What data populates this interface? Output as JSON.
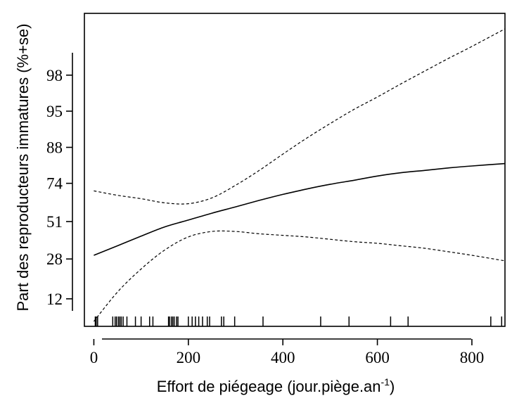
{
  "chart_data": {
    "type": "line",
    "xlabel": {
      "prefix": "Effort de piégeage (jour.piège.an",
      "superscript": "-1",
      "suffix": ")"
    },
    "ylabel": "Part des reproducteurs immatures (%+se)",
    "x_ticks": [
      "0",
      "200",
      "400",
      "600",
      "800"
    ],
    "y_ticks": [
      "12",
      "28",
      "51",
      "74",
      "88",
      "95",
      "98"
    ],
    "x_tick_values": [
      0,
      200,
      400,
      600,
      800
    ],
    "xlim": [
      -20,
      870
    ],
    "y_axis_scale": "logit",
    "ylim": [
      6.2,
      99.6
    ],
    "grid": false,
    "series": [
      {
        "role": "fit",
        "style": "solid",
        "x": [
          0,
          50,
          100,
          150,
          200,
          250,
          300,
          350,
          400,
          450,
          500,
          550,
          600,
          650,
          700,
          750,
          800,
          870
        ],
        "y": [
          30,
          35.5,
          41.5,
          47.5,
          52,
          56.5,
          60.5,
          64.5,
          68,
          71,
          73.5,
          75.5,
          77.5,
          79,
          80,
          81,
          81.8,
          82.7
        ]
      },
      {
        "role": "upper-ci",
        "style": "dashed",
        "x": [
          0,
          50,
          100,
          150,
          200,
          250,
          300,
          350,
          400,
          450,
          500,
          550,
          600,
          650,
          700,
          750,
          800,
          870
        ],
        "y": [
          70,
          67.5,
          65.5,
          63,
          62.5,
          66,
          73,
          80,
          86,
          90.3,
          93.2,
          95.2,
          96.5,
          97.5,
          98.2,
          98.7,
          99.05,
          99.4
        ]
      },
      {
        "role": "lower-ci",
        "style": "dashed",
        "x": [
          0,
          50,
          100,
          150,
          200,
          250,
          300,
          350,
          400,
          450,
          500,
          550,
          600,
          650,
          700,
          750,
          800,
          870
        ],
        "y": [
          7,
          14,
          23,
          33,
          41,
          44.5,
          44.5,
          43,
          42,
          41,
          39.5,
          38,
          37,
          35.5,
          34,
          32,
          30,
          27
        ]
      }
    ],
    "rug_x": [
      3,
      5,
      8,
      40,
      45,
      48,
      52,
      55,
      58,
      62,
      70,
      88,
      100,
      118,
      125,
      158,
      160,
      164,
      167,
      170,
      175,
      178,
      200,
      208,
      215,
      222,
      230,
      240,
      245,
      270,
      275,
      298,
      358,
      480,
      540,
      628,
      665,
      840,
      863
    ]
  }
}
